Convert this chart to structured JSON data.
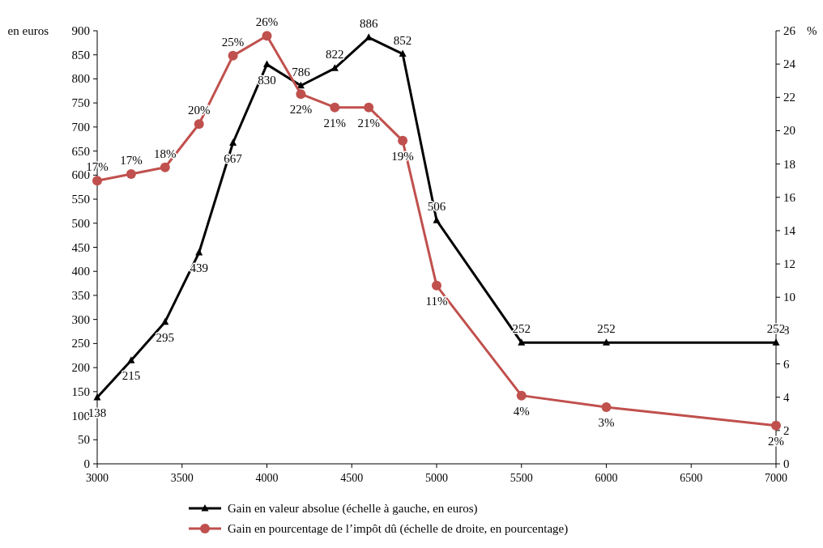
{
  "chart_data": {
    "type": "line",
    "ylabel": "en euros",
    "y2label": "%",
    "x": [
      3000,
      3200,
      3400,
      3600,
      3800,
      4000,
      4200,
      4400,
      4600,
      4800,
      5000,
      5500,
      6000,
      7000
    ],
    "series": [
      {
        "name": "Gain en valeur absolue (échelle à gauche, en euros)",
        "color": "#000000",
        "marker": "triangle",
        "values": [
          138,
          215,
          295,
          439,
          667,
          830,
          786,
          822,
          886,
          852,
          506,
          252,
          252,
          252
        ],
        "value_labels": [
          "138",
          "215",
          "295",
          "439",
          "667",
          "830",
          "786",
          "822",
          "886",
          "852",
          "506",
          "252",
          "252",
          "252"
        ]
      },
      {
        "name": "Gain en pourcentage de l’impôt dû (échelle de droite, en pourcentage)",
        "color": "#c0504d",
        "marker": "circle",
        "axis": "y2",
        "values": [
          17.0,
          17.4,
          17.8,
          20.4,
          24.5,
          25.7,
          22.2,
          21.4,
          21.4,
          19.4,
          10.7,
          4.1,
          3.4,
          2.3
        ],
        "value_labels": [
          "17%",
          "17%",
          "18%",
          "20%",
          "25%",
          "26%",
          "22%",
          "21%",
          "21%",
          "19%",
          "11%",
          "4%",
          "3%",
          "2%"
        ]
      }
    ],
    "xlim": [
      3000,
      7000
    ],
    "xticks": [
      3000,
      3500,
      4000,
      4500,
      5000,
      5500,
      6000,
      6500,
      7000
    ],
    "ylim": [
      0,
      900
    ],
    "yticks": [
      0,
      50,
      100,
      150,
      200,
      250,
      300,
      350,
      400,
      450,
      500,
      550,
      600,
      650,
      700,
      750,
      800,
      850,
      900
    ],
    "y2lim": [
      0,
      26
    ],
    "y2ticks": [
      0,
      2,
      4,
      6,
      8,
      10,
      12,
      14,
      16,
      18,
      20,
      22,
      24,
      26
    ],
    "grid": false,
    "legend": "bottom",
    "line_style": "solid"
  }
}
